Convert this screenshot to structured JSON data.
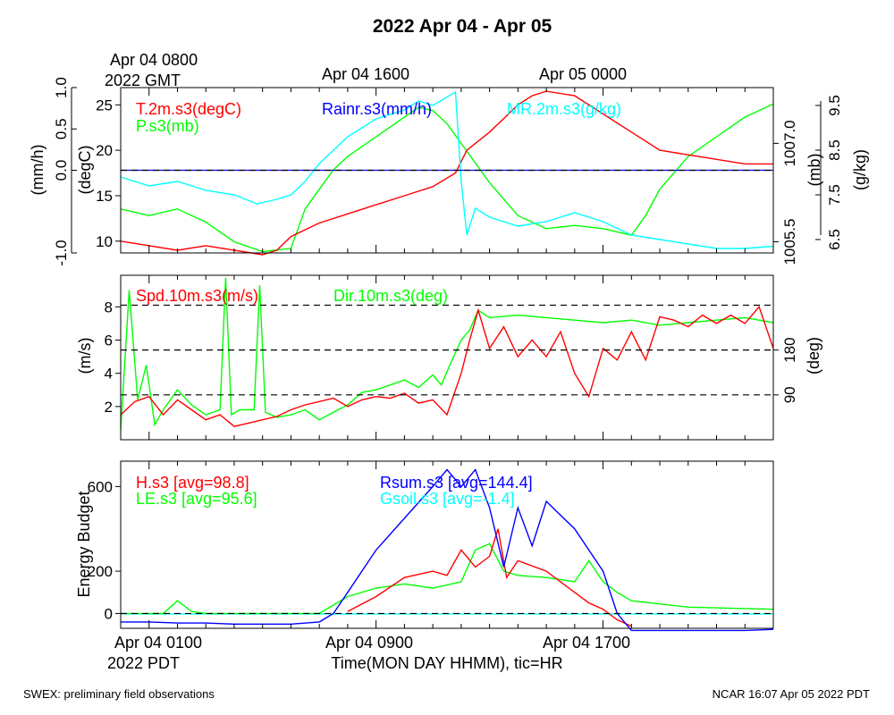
{
  "title": "2022 Apr 04 - Apr 05",
  "top_axis": {
    "first_label": "Apr 04 0800",
    "first_label_line2": "2022 GMT",
    "labels": [
      "Apr 04 1600",
      "Apr 05 0000"
    ]
  },
  "bottom_axis": {
    "labels": [
      "Apr 04 0100",
      "Apr 04 0900",
      "Apr 04 1700"
    ],
    "sublabel": "2022 PDT",
    "xlabel": "Time(MON DAY HHMM), tic=HR"
  },
  "footer": {
    "left": "SWEX: preliminary field observations",
    "right": "NCAR 16:07 Apr 05 2022 PDT"
  },
  "colors": {
    "red": "#ff0000",
    "green": "#00ff00",
    "blue": "#0000ff",
    "cyan": "#00ffff",
    "black": "#000000"
  },
  "chart_data": [
    {
      "type": "line",
      "panel": "met",
      "x_unit": "hours from Apr 04 0000 PDT",
      "xlim": [
        0,
        23
      ],
      "series": [
        {
          "name": "T.2m.s3(degC)",
          "axis": "degC",
          "color": "#ff0000",
          "x": [
            0.0,
            1.0,
            2.0,
            3.0,
            4.0,
            5.0,
            5.5,
            6.0,
            7.0,
            8.0,
            9.0,
            10.0,
            11.0,
            11.8,
            12.2,
            13.0,
            13.5,
            14.0,
            14.5,
            15.0,
            16.0,
            17.0,
            18.0,
            19.0,
            20.0,
            21.0,
            22.0,
            23.0
          ],
          "y": [
            10,
            9.5,
            9.0,
            9.5,
            9.0,
            8.5,
            9.0,
            10.5,
            12.0,
            13.0,
            14.0,
            15.0,
            16.0,
            17.5,
            20.0,
            22.0,
            23.5,
            25.0,
            26.0,
            26.5,
            26.0,
            24.0,
            22.0,
            20.0,
            19.5,
            19.0,
            18.5,
            18.5
          ]
        },
        {
          "name": "P.s3(mb)",
          "axis": "mb",
          "color": "#00ff00",
          "x": [
            0.0,
            1.0,
            2.0,
            3.0,
            4.0,
            5.0,
            6.0,
            6.5,
            7.0,
            7.5,
            8.0,
            9.0,
            10.0,
            10.5,
            11.0,
            11.5,
            12.0,
            13.0,
            14.0,
            15.0,
            16.0,
            17.0,
            18.0,
            18.5,
            19.0,
            20.0,
            21.0,
            22.0,
            23.0
          ],
          "y": [
            1006.0,
            1005.9,
            1006.0,
            1005.8,
            1005.5,
            1005.35,
            1005.4,
            1006.0,
            1006.3,
            1006.6,
            1006.8,
            1007.1,
            1007.4,
            1007.55,
            1007.5,
            1007.3,
            1007.0,
            1006.4,
            1005.9,
            1005.7,
            1005.75,
            1005.7,
            1005.6,
            1005.9,
            1006.3,
            1006.8,
            1007.1,
            1007.4,
            1007.6
          ]
        },
        {
          "name": "MR.2m.s3(g/kg)",
          "axis": "g/kg",
          "color": "#00ffff",
          "x": [
            0.0,
            1.0,
            2.0,
            3.0,
            4.0,
            4.8,
            5.5,
            6.0,
            6.5,
            7.0,
            8.0,
            9.0,
            10.0,
            10.5,
            11.0,
            11.8,
            12.0,
            12.2,
            12.5,
            13.0,
            14.0,
            15.0,
            16.0,
            17.0,
            18.0,
            19.0,
            20.0,
            21.0,
            22.0,
            23.0
          ],
          "y": [
            7.9,
            7.7,
            7.8,
            7.6,
            7.5,
            7.3,
            7.4,
            7.5,
            7.8,
            8.2,
            8.8,
            9.2,
            9.4,
            9.6,
            9.5,
            9.8,
            7.8,
            6.6,
            7.2,
            7.0,
            6.8,
            6.9,
            7.1,
            6.9,
            6.6,
            6.5,
            6.4,
            6.3,
            6.3,
            6.35
          ]
        },
        {
          "name": "Rainr.s3(mm/h)",
          "axis": "mm/h",
          "color": "#0000ff",
          "x": [
            0,
            23
          ],
          "y": [
            0,
            0
          ]
        }
      ],
      "axes": {
        "mm/h": {
          "label": "(mm/h)",
          "side": "left-outer",
          "range": [
            -1.0,
            1.0
          ],
          "ticks": [
            "1.0",
            "0.5",
            "0.0",
            "-1.0"
          ]
        },
        "degC": {
          "label": "(degC)",
          "side": "left-inner",
          "range": [
            8.7,
            26.9
          ],
          "ticks": [
            "25",
            "20",
            "15",
            "10"
          ]
        },
        "mb": {
          "label": "(mb)",
          "side": "right-inner",
          "range": [
            1005.33,
            1007.85
          ],
          "ticks": [
            "1007.0",
            "1005.5"
          ]
        },
        "g/kg": {
          "label": "(g/kg)",
          "side": "right-outer",
          "range": [
            6.2,
            9.9
          ],
          "ticks": [
            "9.5",
            "8.5",
            "7.5",
            "6.5"
          ]
        }
      },
      "reference_lines": [
        0
      ]
    },
    {
      "type": "line",
      "panel": "wind",
      "x_unit": "hours from Apr 04 0000 PDT",
      "xlim": [
        0,
        23
      ],
      "series": [
        {
          "name": "Spd.10m.s3(m/s)",
          "axis": "m/s",
          "color": "#ff0000",
          "x": [
            0.0,
            0.5,
            1.0,
            1.5,
            2.0,
            2.5,
            3.0,
            3.5,
            4.0,
            4.5,
            5.0,
            5.5,
            6.0,
            6.5,
            7.0,
            7.5,
            8.0,
            8.5,
            9.0,
            9.5,
            10.0,
            10.5,
            11.0,
            11.5,
            12.0,
            12.3,
            12.6,
            13.0,
            13.5,
            14.0,
            14.5,
            15.0,
            15.5,
            16.0,
            16.5,
            17.0,
            17.5,
            18.0,
            18.5,
            19.0,
            19.5,
            20.0,
            20.5,
            21.0,
            21.5,
            22.0,
            22.5,
            23.0
          ],
          "y": [
            1.5,
            2.3,
            2.6,
            1.5,
            2.4,
            1.8,
            1.2,
            1.5,
            0.8,
            1.0,
            1.2,
            1.4,
            1.8,
            2.1,
            2.3,
            2.5,
            2.0,
            2.4,
            2.6,
            2.5,
            2.8,
            2.2,
            2.4,
            1.5,
            4.0,
            6.0,
            7.8,
            5.5,
            6.8,
            5.0,
            6.0,
            5.0,
            6.5,
            4.0,
            2.6,
            5.5,
            4.8,
            6.5,
            4.8,
            7.4,
            7.2,
            6.8,
            7.5,
            7.0,
            7.5,
            7.0,
            8.0,
            5.5
          ]
        },
        {
          "name": "Dir.10m.s3(deg)",
          "axis": "deg",
          "color": "#00ff00",
          "x": [
            0.0,
            0.3,
            0.6,
            0.9,
            1.2,
            1.5,
            2.0,
            2.5,
            3.0,
            3.5,
            3.7,
            3.9,
            4.2,
            4.7,
            4.9,
            5.1,
            5.5,
            6.0,
            6.5,
            7.0,
            7.5,
            8.0,
            8.5,
            9.0,
            9.5,
            10.0,
            10.5,
            11.0,
            11.3,
            11.6,
            12.0,
            12.3,
            12.6,
            13.0,
            14.0,
            15.0,
            16.0,
            17.0,
            18.0,
            19.0,
            20.0,
            21.0,
            22.0,
            23.0
          ],
          "y": [
            20,
            300,
            80,
            150,
            30,
            60,
            100,
            70,
            50,
            60,
            325,
            50,
            60,
            60,
            310,
            55,
            45,
            50,
            60,
            40,
            55,
            70,
            95,
            100,
            110,
            120,
            105,
            130,
            110,
            150,
            200,
            220,
            260,
            245,
            250,
            245,
            240,
            235,
            240,
            230,
            235,
            240,
            245,
            235
          ]
        }
      ],
      "axes": {
        "m/s": {
          "label": "(m/s)",
          "side": "left",
          "range": [
            0,
            9.9
          ],
          "ticks": [
            "8",
            "6",
            "4",
            "2"
          ]
        },
        "deg": {
          "label": "(deg)",
          "side": "right",
          "range": [
            0,
            330
          ],
          "ticks": [
            "180",
            "90"
          ]
        }
      },
      "reference_lines_deg": [
        90,
        180,
        270
      ]
    },
    {
      "type": "line",
      "panel": "energy",
      "x_unit": "hours from Apr 04 0000 PDT",
      "xlim": [
        0,
        23
      ],
      "ylabel": "Energy Budget",
      "ylim": [
        -70,
        720
      ],
      "yticks": [
        "600",
        "200",
        "0"
      ],
      "series": [
        {
          "name": "H.s3 [avg=98.8]",
          "color": "#ff0000",
          "x": [
            8.0,
            9.0,
            10.0,
            11.0,
            11.5,
            12.0,
            12.5,
            13.0,
            13.3,
            13.6,
            14.0,
            15.0,
            16.0,
            16.5,
            17.0,
            17.5,
            18.0
          ],
          "y": [
            10,
            80,
            170,
            200,
            180,
            300,
            220,
            270,
            400,
            170,
            250,
            200,
            100,
            50,
            20,
            -30,
            -60
          ]
        },
        {
          "name": "LE.s3 [avg=95.6]",
          "color": "#00ff00",
          "x": [
            0.0,
            1.5,
            2.0,
            2.5,
            3.0,
            4.0,
            5.0,
            6.0,
            7.0,
            8.0,
            9.0,
            10.0,
            11.0,
            12.0,
            12.5,
            13.0,
            13.5,
            14.0,
            15.0,
            16.0,
            16.5,
            17.0,
            17.5,
            18.0,
            20.0,
            23.0
          ],
          "y": [
            0,
            0,
            60,
            10,
            0,
            0,
            0,
            0,
            0,
            80,
            120,
            140,
            120,
            150,
            300,
            330,
            200,
            180,
            170,
            150,
            250,
            150,
            100,
            60,
            30,
            20
          ]
        },
        {
          "name": "Rsum.s3 [avg=144.4]",
          "color": "#0000ff",
          "x": [
            0.0,
            1.0,
            2.0,
            3.0,
            4.0,
            5.0,
            6.0,
            7.0,
            7.5,
            8.0,
            9.0,
            10.0,
            11.0,
            11.5,
            12.0,
            12.5,
            13.0,
            13.5,
            14.0,
            14.5,
            15.0,
            16.0,
            17.0,
            17.5,
            18.0,
            19.0,
            20.0,
            21.0,
            22.0,
            23.0
          ],
          "y": [
            -40,
            -40,
            -45,
            -45,
            -50,
            -50,
            -50,
            -40,
            0,
            100,
            300,
            450,
            600,
            680,
            600,
            680,
            500,
            220,
            500,
            320,
            530,
            400,
            200,
            0,
            -80,
            -80,
            -80,
            -80,
            -80,
            -75
          ]
        },
        {
          "name": "Gsoil.s3 [avg=-1.4]",
          "color": "#00ffff",
          "x": [
            0,
            23
          ],
          "y": [
            -2,
            -2
          ]
        }
      ],
      "reference_lines": [
        0
      ]
    }
  ]
}
